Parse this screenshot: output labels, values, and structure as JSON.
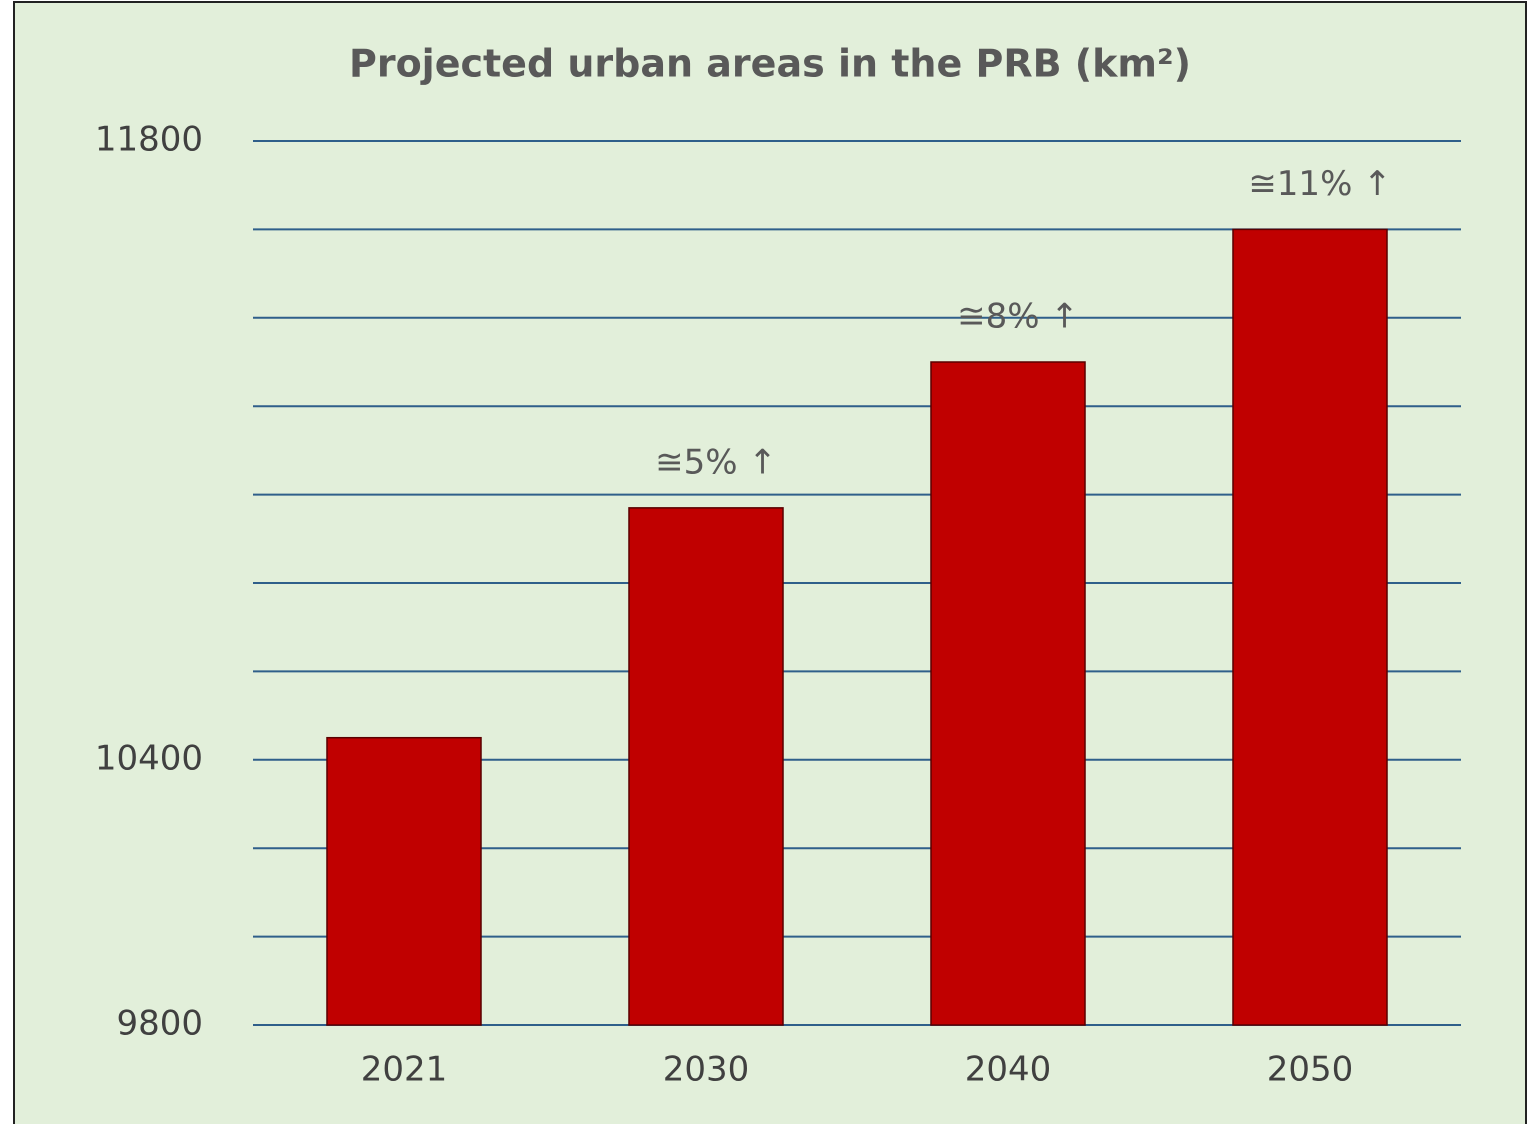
{
  "chart_data": {
    "type": "bar",
    "title": "Projected urban areas in the PRB (km²)",
    "categories": [
      "2021",
      "2030",
      "2040",
      "2050"
    ],
    "values": [
      10450,
      10970,
      11300,
      11600
    ],
    "value_labels": [
      null,
      "≅5% ↑",
      "≅8% ↑",
      "≅11% ↑"
    ],
    "color": "#c00000",
    "ylim": [
      9800,
      11800
    ],
    "yticks": [
      9800,
      10400,
      11800
    ],
    "grid_lines": [
      9800,
      10000,
      10200,
      10400,
      10600,
      10800,
      11000,
      11200,
      11400,
      11600,
      11800
    ],
    "grid": true
  }
}
